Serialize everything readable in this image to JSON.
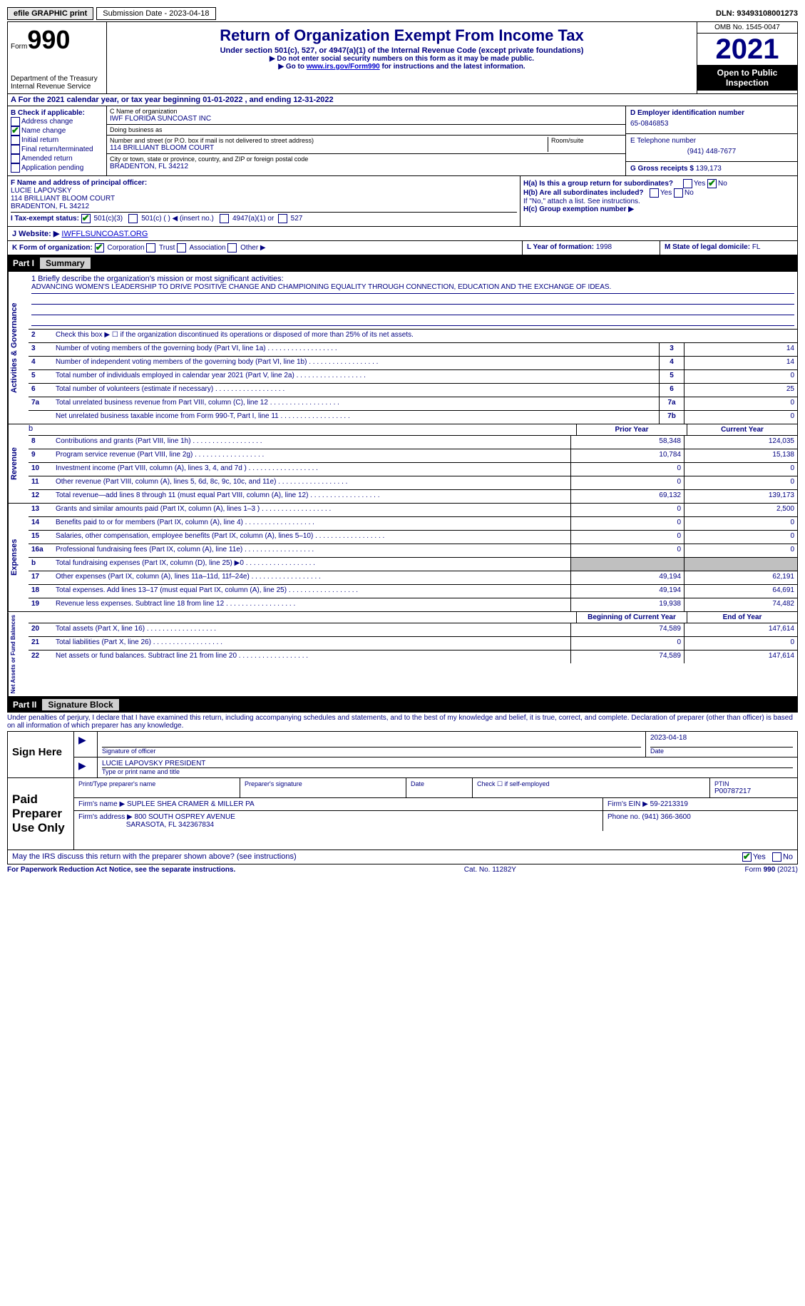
{
  "topbar": {
    "efile": "efile GRAPHIC print",
    "submission": "Submission Date - 2023-04-18",
    "dln": "DLN: 93493108001273"
  },
  "header": {
    "form_label": "Form",
    "form_num": "990",
    "dept": "Department of the Treasury",
    "dept2": "Internal Revenue Service",
    "title": "Return of Organization Exempt From Income Tax",
    "subtitle": "Under section 501(c), 527, or 4947(a)(1) of the Internal Revenue Code (except private foundations)",
    "note1": "▶ Do not enter social security numbers on this form as it may be made public.",
    "note2_pre": "▶ Go to ",
    "note2_link": "www.irs.gov/Form990",
    "note2_post": " for instructions and the latest information.",
    "omb": "OMB No. 1545-0047",
    "year": "2021",
    "inspect": "Open to Public Inspection"
  },
  "a": "A For the 2021 calendar year, or tax year beginning 01-01-2022   , and ending 12-31-2022",
  "b": {
    "label": "B Check if applicable:",
    "opts": [
      "Address change",
      "Name change",
      "Initial return",
      "Final return/terminated",
      "Amended return",
      "Application pending"
    ],
    "checked_idx": 1
  },
  "c": {
    "name_label": "C Name of organization",
    "name": "IWF FLORIDA SUNCOAST INC",
    "dba_label": "Doing business as",
    "dba": "",
    "street_label": "Number and street (or P.O. box if mail is not delivered to street address)",
    "street": "114 BRILLIANT BLOOM COURT",
    "room_label": "Room/suite",
    "city_label": "City or town, state or province, country, and ZIP or foreign postal code",
    "city": "BRADENTON, FL  34212"
  },
  "d": {
    "label": "D Employer identification number",
    "val": "65-0846853"
  },
  "e": {
    "label": "E Telephone number",
    "val": "(941) 448-7677"
  },
  "g": {
    "label": "G Gross receipts $",
    "val": "139,173"
  },
  "f": {
    "label": "F  Name and address of principal officer:",
    "name": "LUCIE LAPOVSKY",
    "addr1": "114 BRILLIANT BLOOM COURT",
    "addr2": "BRADENTON, FL  34212"
  },
  "h": {
    "ha": "H(a)  Is this a group return for subordinates?",
    "hb": "H(b)  Are all subordinates included?",
    "hb_note": "If \"No,\" attach a list. See instructions.",
    "hc": "H(c)  Group exemption number ▶"
  },
  "i": "I    Tax-exempt status:",
  "i_opts": [
    "501(c)(3)",
    "501(c) (  ) ◀ (insert no.)",
    "4947(a)(1) or",
    "527"
  ],
  "j": {
    "label": "J   Website: ▶ ",
    "val": "IWFFLSUNCOAST.ORG"
  },
  "k": "K Form of organization:",
  "k_opts": [
    "Corporation",
    "Trust",
    "Association",
    "Other ▶"
  ],
  "l": {
    "label": "L Year of formation: ",
    "val": "1998"
  },
  "m": {
    "label": "M State of legal domicile: ",
    "val": "FL"
  },
  "part1": {
    "num": "Part I",
    "title": "Summary"
  },
  "briefly_label": "1   Briefly describe the organization's mission or most significant activities:",
  "briefly": "ADVANCING WOMEN'S LEADERSHIP TO DRIVE POSITIVE CHANGE AND CHAMPIONING EQUALITY THROUGH CONNECTION, EDUCATION AND THE EXCHANGE OF IDEAS.",
  "line2": "Check this box ▶ ☐  if the organization discontinued its operations or disposed of more than 25% of its net assets.",
  "gov_rows": [
    {
      "n": "3",
      "d": "Number of voting members of the governing body (Part VI, line 1a)",
      "b": "3",
      "v": "14"
    },
    {
      "n": "4",
      "d": "Number of independent voting members of the governing body (Part VI, line 1b)",
      "b": "4",
      "v": "14"
    },
    {
      "n": "5",
      "d": "Total number of individuals employed in calendar year 2021 (Part V, line 2a)",
      "b": "5",
      "v": "0"
    },
    {
      "n": "6",
      "d": "Total number of volunteers (estimate if necessary)",
      "b": "6",
      "v": "25"
    },
    {
      "n": "7a",
      "d": "Total unrelated business revenue from Part VIII, column (C), line 12",
      "b": "7a",
      "v": "0"
    },
    {
      "n": "",
      "d": "Net unrelated business taxable income from Form 990-T, Part I, line 11",
      "b": "7b",
      "v": "0"
    }
  ],
  "rev_header": {
    "prior": "Prior Year",
    "current": "Current Year"
  },
  "rev_rows": [
    {
      "n": "8",
      "d": "Contributions and grants (Part VIII, line 1h)",
      "p": "58,348",
      "c": "124,035"
    },
    {
      "n": "9",
      "d": "Program service revenue (Part VIII, line 2g)",
      "p": "10,784",
      "c": "15,138"
    },
    {
      "n": "10",
      "d": "Investment income (Part VIII, column (A), lines 3, 4, and 7d )",
      "p": "0",
      "c": "0"
    },
    {
      "n": "11",
      "d": "Other revenue (Part VIII, column (A), lines 5, 6d, 8c, 9c, 10c, and 11e)",
      "p": "0",
      "c": "0"
    },
    {
      "n": "12",
      "d": "Total revenue—add lines 8 through 11 (must equal Part VIII, column (A), line 12)",
      "p": "69,132",
      "c": "139,173"
    }
  ],
  "exp_rows": [
    {
      "n": "13",
      "d": "Grants and similar amounts paid (Part IX, column (A), lines 1–3 )",
      "p": "0",
      "c": "2,500"
    },
    {
      "n": "14",
      "d": "Benefits paid to or for members (Part IX, column (A), line 4)",
      "p": "0",
      "c": "0"
    },
    {
      "n": "15",
      "d": "Salaries, other compensation, employee benefits (Part IX, column (A), lines 5–10)",
      "p": "0",
      "c": "0"
    },
    {
      "n": "16a",
      "d": "Professional fundraising fees (Part IX, column (A), line 11e)",
      "p": "0",
      "c": "0"
    },
    {
      "n": "b",
      "d": "Total fundraising expenses (Part IX, column (D), line 25) ▶0",
      "p": "",
      "c": "",
      "grey": true
    },
    {
      "n": "17",
      "d": "Other expenses (Part IX, column (A), lines 11a–11d, 11f–24e)",
      "p": "49,194",
      "c": "62,191"
    },
    {
      "n": "18",
      "d": "Total expenses. Add lines 13–17 (must equal Part IX, column (A), line 25)",
      "p": "49,194",
      "c": "64,691"
    },
    {
      "n": "19",
      "d": "Revenue less expenses. Subtract line 18 from line 12",
      "p": "19,938",
      "c": "74,482"
    }
  ],
  "net_header": {
    "prior": "Beginning of Current Year",
    "current": "End of Year"
  },
  "net_rows": [
    {
      "n": "20",
      "d": "Total assets (Part X, line 16)",
      "p": "74,589",
      "c": "147,614"
    },
    {
      "n": "21",
      "d": "Total liabilities (Part X, line 26)",
      "p": "0",
      "c": "0"
    },
    {
      "n": "22",
      "d": "Net assets or fund balances. Subtract line 21 from line 20",
      "p": "74,589",
      "c": "147,614"
    }
  ],
  "vtabs": {
    "gov": "Activities & Governance",
    "rev": "Revenue",
    "exp": "Expenses",
    "net": "Net Assets or Fund Balances"
  },
  "part2": {
    "num": "Part II",
    "title": "Signature Block"
  },
  "penalty": "Under penalties of perjury, I declare that I have examined this return, including accompanying schedules and statements, and to the best of my knowledge and belief, it is true, correct, and complete. Declaration of preparer (other than officer) is based on all information of which preparer has any knowledge.",
  "sign": {
    "label": "Sign Here",
    "sig_label": "Signature of officer",
    "date": "2023-04-18",
    "date_label": "Date",
    "name": "LUCIE LAPOVSKY  PRESIDENT",
    "name_label": "Type or print name and title"
  },
  "paid": {
    "label": "Paid Preparer Use Only",
    "h1": "Print/Type preparer's name",
    "h2": "Preparer's signature",
    "h3": "Date",
    "h4_pre": "Check ☐ if self-employed",
    "h5": "PTIN",
    "ptin": "P00787217",
    "firm_label": "Firm's name     ▶",
    "firm": "SUPLEE SHEA CRAMER & MILLER PA",
    "ein_label": "Firm's EIN ▶",
    "ein": "59-2213319",
    "addr_label": "Firm's address ▶",
    "addr1": "800 SOUTH OSPREY AVENUE",
    "addr2": "SARASOTA, FL  342367834",
    "phone_label": "Phone no.",
    "phone": "(941) 366-3600"
  },
  "may": "May the IRS discuss this return with the preparer shown above? (see instructions)",
  "footer": {
    "l": "For Paperwork Reduction Act Notice, see the separate instructions.",
    "m": "Cat. No. 11282Y",
    "r": "Form 990 (2021)"
  }
}
